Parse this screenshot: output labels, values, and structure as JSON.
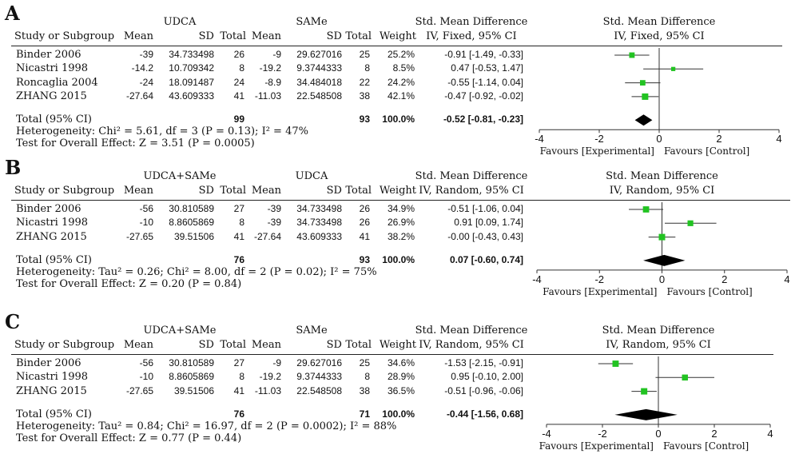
{
  "panels": [
    {
      "letter": "A",
      "group1": "UDCA",
      "group2": "SAMe",
      "effect_header": "Std. Mean Difference",
      "method": "IV, Fixed, 95% CI",
      "col_study": "Study or Subgroup",
      "col_mean1": "Mean",
      "col_sd1": "SD",
      "col_total1": "Total",
      "col_mean2": "Mean",
      "col_sd2": "SD",
      "col_total2": "Total",
      "col_weight": "Weight",
      "studies": [
        {
          "name": "Binder 2006",
          "mean1": "-39",
          "sd1": "34.733498",
          "n1": "26",
          "mean2": "-9",
          "sd2": "29.627016",
          "n2": "25",
          "weight": "25.2%",
          "ci_text": "-0.91 [-1.49, -0.33]"
        },
        {
          "name": "Nicastri 1998",
          "mean1": "-14.2",
          "sd1": "10.709342",
          "n1": "8",
          "mean2": "-19.2",
          "sd2": "9.3744333",
          "n2": "8",
          "weight": "8.5%",
          "ci_text": "0.47 [-0.53, 1.47]"
        },
        {
          "name": "Roncaglia 2004",
          "mean1": "-24",
          "sd1": "18.091487",
          "n1": "24",
          "mean2": "-8.9",
          "sd2": "34.484018",
          "n2": "22",
          "weight": "24.2%",
          "ci_text": "-0.55 [-1.14, 0.04]"
        },
        {
          "name": "ZHANG 2015",
          "mean1": "-27.64",
          "sd1": "43.609333",
          "n1": "41",
          "mean2": "-11.03",
          "sd2": "22.548508",
          "n2": "38",
          "weight": "42.1%",
          "ci_text": "-0.47 [-0.92, -0.02]"
        }
      ],
      "total_label": "Total (95% CI)",
      "total_n1": "99",
      "total_n2": "93",
      "total_weight": "100.0%",
      "total_ci_text": "-0.52 [-0.81, -0.23]",
      "heterogeneity": "Heterogeneity: Chi² = 5.61, df = 3 (P = 0.13); I² = 47%",
      "overall_effect": "Test for Overall Effect: Z = 3.51 (P = 0.0005)",
      "favours_left": "Favours [Experimental]",
      "favours_right": "Favours [Control]"
    },
    {
      "letter": "B",
      "group1": "UDCA+SAMe",
      "group2": "UDCA",
      "effect_header": "Std. Mean Difference",
      "method": "IV, Random, 95% CI",
      "col_study": "Study or Subgroup",
      "col_mean1": "Mean",
      "col_sd1": "SD",
      "col_total1": "Total",
      "col_mean2": "Mean",
      "col_sd2": "SD",
      "col_total2": "Total",
      "col_weight": "Weight",
      "studies": [
        {
          "name": "Binder 2006",
          "mean1": "-56",
          "sd1": "30.810589",
          "n1": "27",
          "mean2": "-39",
          "sd2": "34.733498",
          "n2": "26",
          "weight": "34.9%",
          "ci_text": "-0.51 [-1.06, 0.04]"
        },
        {
          "name": "Nicastri 1998",
          "mean1": "-10",
          "sd1": "8.8605869",
          "n1": "8",
          "mean2": "-39",
          "sd2": "34.733498",
          "n2": "26",
          "weight": "26.9%",
          "ci_text": "0.91 [0.09, 1.74]"
        },
        {
          "name": "ZHANG 2015",
          "mean1": "-27.65",
          "sd1": "39.51506",
          "n1": "41",
          "mean2": "-27.64",
          "sd2": "43.609333",
          "n2": "41",
          "weight": "38.2%",
          "ci_text": "-0.00 [-0.43, 0.43]"
        }
      ],
      "total_label": "Total (95% CI)",
      "total_n1": "76",
      "total_n2": "93",
      "total_weight": "100.0%",
      "total_ci_text": "0.07 [-0.60, 0.74]",
      "heterogeneity": "Heterogeneity: Tau² = 0.26; Chi² = 8.00, df = 2 (P = 0.02); I² = 75%",
      "overall_effect": "Test for Overall Effect: Z = 0.20 (P = 0.84)",
      "favours_left": "Favours [Experimental]",
      "favours_right": "Favours [Control]"
    },
    {
      "letter": "C",
      "group1": "UDCA+SAMe",
      "group2": "SAMe",
      "effect_header": "Std. Mean Difference",
      "method": "IV, Random, 95% CI",
      "col_study": "Study or Subgroup",
      "col_mean1": "Mean",
      "col_sd1": "SD",
      "col_total1": "Total",
      "col_mean2": "Mean",
      "col_sd2": "SD",
      "col_total2": "Total",
      "col_weight": "Weight",
      "studies": [
        {
          "name": "Binder 2006",
          "mean1": "-56",
          "sd1": "30.810589",
          "n1": "27",
          "mean2": "-9",
          "sd2": "29.627016",
          "n2": "25",
          "weight": "34.6%",
          "ci_text": "-1.53 [-2.15, -0.91]"
        },
        {
          "name": "Nicastri 1998",
          "mean1": "-10",
          "sd1": "8.8605869",
          "n1": "8",
          "mean2": "-19.2",
          "sd2": "9.3744333",
          "n2": "8",
          "weight": "28.9%",
          "ci_text": "0.95 [-0.10, 2.00]"
        },
        {
          "name": "ZHANG 2015",
          "mean1": "-27.65",
          "sd1": "39.51506",
          "n1": "41",
          "mean2": "-11.03",
          "sd2": "22.548508",
          "n2": "38",
          "weight": "36.5%",
          "ci_text": "-0.51 [-0.96, -0.06]"
        }
      ],
      "total_label": "Total (95% CI)",
      "total_n1": "76",
      "total_n2": "71",
      "total_weight": "100.0%",
      "total_ci_text": "-0.44 [-1.56, 0.68]",
      "heterogeneity": "Heterogeneity: Tau² = 0.84; Chi² = 16.97, df = 2 (P = 0.0002); I² = 88%",
      "overall_effect": "Test for Overall Effect: Z = 0.77 (P = 0.44)",
      "favours_left": "Favours [Experimental]",
      "favours_right": "Favours [Control]"
    }
  ],
  "chart_data": [
    {
      "type": "scatter",
      "title": "Std. Mean Difference",
      "subtitle": "IV, Fixed, 95% CI",
      "xlabel": "",
      "xlim": [
        -4,
        4
      ],
      "ticks": [
        -4,
        -2,
        0,
        2,
        4
      ],
      "tick_labels": [
        "-4",
        "-2",
        "0",
        "2",
        "4"
      ],
      "favours_left": "Favours [Experimental]",
      "favours_right": "Favours [Control]",
      "studies": [
        {
          "name": "Binder 2006",
          "estimate": -0.91,
          "lower": -1.49,
          "upper": -0.33,
          "weight": 25.2
        },
        {
          "name": "Nicastri 1998",
          "estimate": 0.47,
          "lower": -0.53,
          "upper": 1.47,
          "weight": 8.5
        },
        {
          "name": "Roncaglia 2004",
          "estimate": -0.55,
          "lower": -1.14,
          "upper": 0.04,
          "weight": 24.2
        },
        {
          "name": "ZHANG 2015",
          "estimate": -0.47,
          "lower": -0.92,
          "upper": -0.02,
          "weight": 42.1
        }
      ],
      "pooled": {
        "estimate": -0.52,
        "lower": -0.81,
        "upper": -0.23
      },
      "marker_color": "#22c322"
    },
    {
      "type": "scatter",
      "title": "Std. Mean Difference",
      "subtitle": "IV, Random, 95% CI",
      "xlabel": "",
      "xlim": [
        -4,
        4
      ],
      "ticks": [
        -4,
        -2,
        0,
        2,
        4
      ],
      "tick_labels": [
        "-4",
        "-2",
        "0",
        "2",
        "4"
      ],
      "favours_left": "Favours [Experimental]",
      "favours_right": "Favours [Control]",
      "studies": [
        {
          "name": "Binder 2006",
          "estimate": -0.51,
          "lower": -1.06,
          "upper": 0.04,
          "weight": 34.9
        },
        {
          "name": "Nicastri 1998",
          "estimate": 0.91,
          "lower": 0.09,
          "upper": 1.74,
          "weight": 26.9
        },
        {
          "name": "ZHANG 2015",
          "estimate": -0.0,
          "lower": -0.43,
          "upper": 0.43,
          "weight": 38.2
        }
      ],
      "pooled": {
        "estimate": 0.07,
        "lower": -0.6,
        "upper": 0.74
      },
      "marker_color": "#22c322"
    },
    {
      "type": "scatter",
      "title": "Std. Mean Difference",
      "subtitle": "IV, Random, 95% CI",
      "xlabel": "",
      "xlim": [
        -4,
        4
      ],
      "ticks": [
        -4,
        -2,
        0,
        2,
        4
      ],
      "tick_labels": [
        "-4",
        "-2",
        "0",
        "2",
        "4"
      ],
      "favours_left": "Favours [Experimental]",
      "favours_right": "Favours [Control]",
      "studies": [
        {
          "name": "Binder 2006",
          "estimate": -1.53,
          "lower": -2.15,
          "upper": -0.91,
          "weight": 34.6
        },
        {
          "name": "Nicastri 1998",
          "estimate": 0.95,
          "lower": -0.1,
          "upper": 2.0,
          "weight": 28.9
        },
        {
          "name": "ZHANG 2015",
          "estimate": -0.51,
          "lower": -0.96,
          "upper": -0.06,
          "weight": 36.5
        }
      ],
      "pooled": {
        "estimate": -0.44,
        "lower": -1.56,
        "upper": 0.68
      },
      "marker_color": "#22c322"
    }
  ]
}
